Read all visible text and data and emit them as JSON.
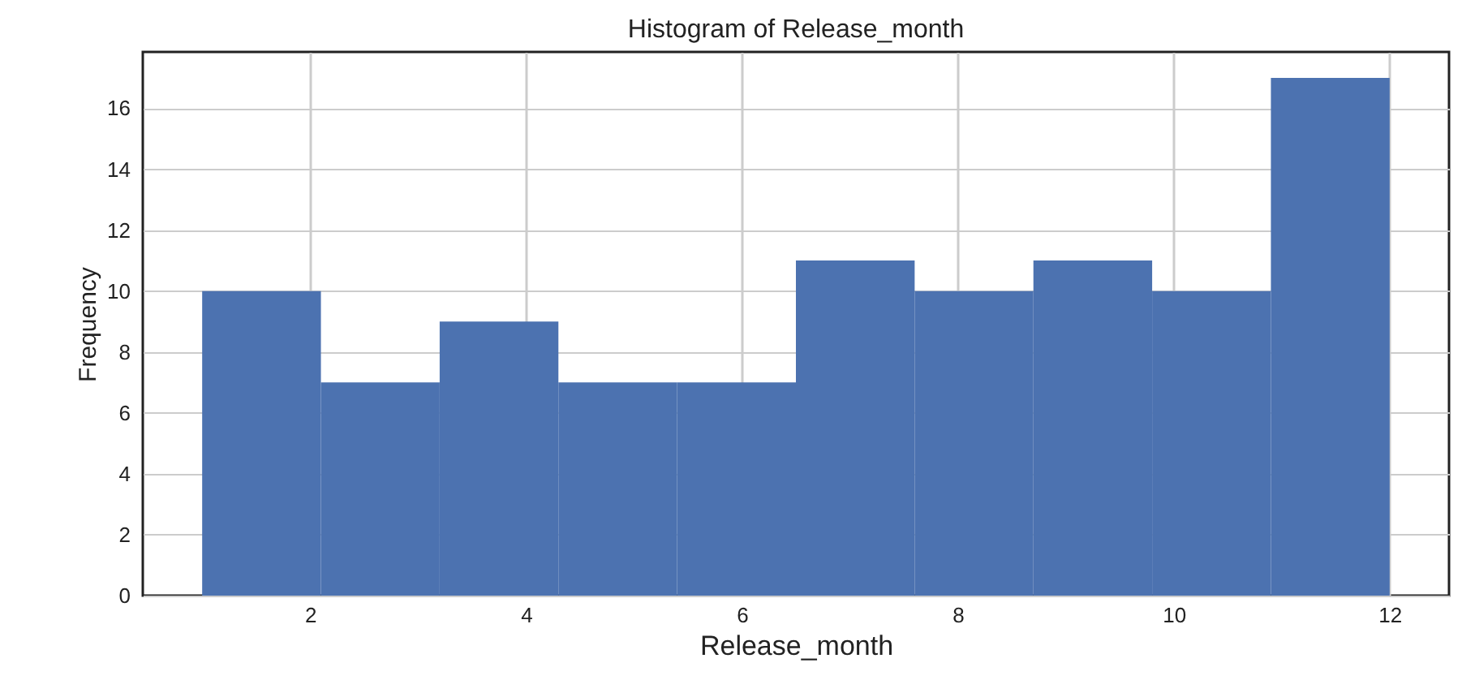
{
  "chart_data": {
    "type": "histogram",
    "title": "Histogram of Release_month",
    "xlabel": "Release_month",
    "ylabel": "Frequency",
    "bins": [
      1,
      2.1,
      3.2,
      4.3,
      5.4,
      6.5,
      7.6,
      8.7,
      9.8,
      10.9,
      12
    ],
    "values": [
      10,
      7,
      9,
      7,
      7,
      11,
      10,
      11,
      10,
      17
    ],
    "color": "#4c72b0",
    "xlim": [
      0.45,
      12.55
    ],
    "xticks": [
      2,
      4,
      6,
      8,
      10,
      12
    ],
    "ylim": [
      0,
      17.85
    ],
    "yticks": [
      0,
      2,
      4,
      6,
      8,
      10,
      12,
      14,
      16
    ],
    "grid": true
  }
}
